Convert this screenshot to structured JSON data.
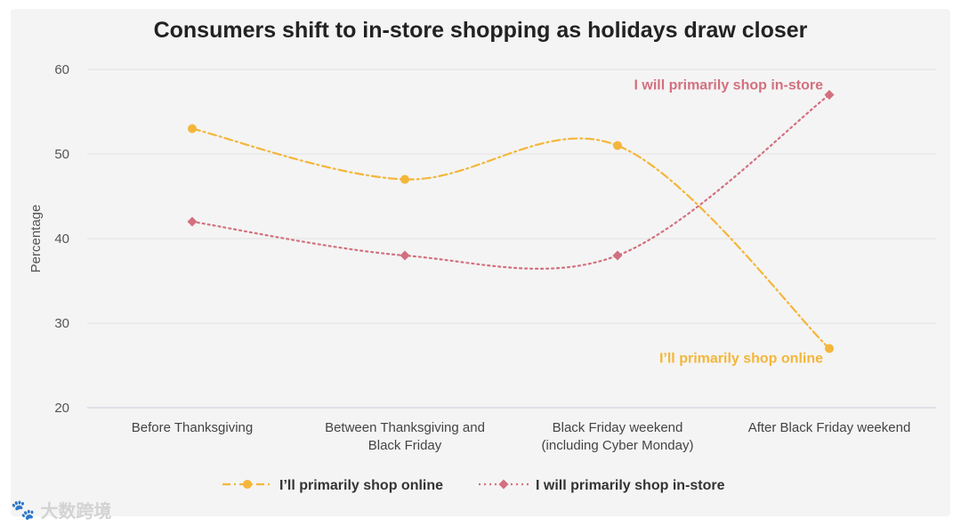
{
  "chart_data": {
    "type": "line",
    "title": "Consumers shift to in-store shopping as holidays draw closer",
    "ylabel": "Percentage",
    "xlabel": "",
    "ylim": [
      20,
      60
    ],
    "yticks": [
      20,
      30,
      40,
      50,
      60
    ],
    "grid": true,
    "legend_position": "bottom",
    "categories": [
      [
        "Before Thanksgiving"
      ],
      [
        "Between Thanksgiving and",
        "Black Friday"
      ],
      [
        "Black Friday weekend",
        "(including Cyber Monday)"
      ],
      [
        "After Black Friday weekend"
      ]
    ],
    "series": [
      {
        "name": "I’ll primarily shop online",
        "values": [
          53,
          47,
          51,
          27
        ],
        "color": "#f4b63a",
        "marker": "circle",
        "dash": "dash-dot",
        "end_label": "I’ll primarily shop online"
      },
      {
        "name": "I will primarily shop in-store",
        "values": [
          42,
          38,
          38,
          57
        ],
        "color": "#d3707f",
        "marker": "diamond",
        "dash": "dotted",
        "end_label": "I will primarily shop in-store"
      }
    ]
  },
  "watermark": {
    "text": "大数跨境",
    "icon": "logo-icon"
  }
}
